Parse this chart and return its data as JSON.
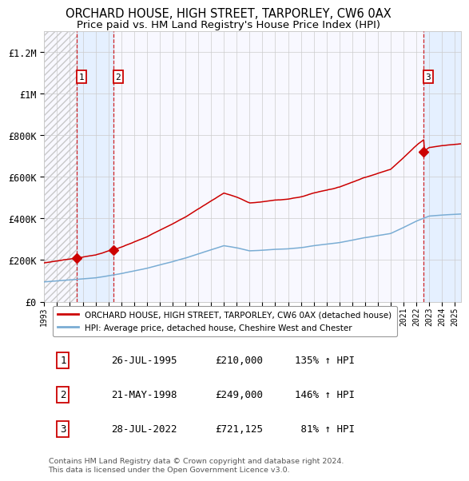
{
  "title": "ORCHARD HOUSE, HIGH STREET, TARPORLEY, CW6 0AX",
  "subtitle": "Price paid vs. HM Land Registry's House Price Index (HPI)",
  "title_fontsize": 10.5,
  "subtitle_fontsize": 9.5,
  "ylim": [
    0,
    1300000
  ],
  "yticks": [
    0,
    200000,
    400000,
    600000,
    800000,
    1000000,
    1200000
  ],
  "ytick_labels": [
    "£0",
    "£200K",
    "£400K",
    "£600K",
    "£800K",
    "£1M",
    "£1.2M"
  ],
  "xmin_year": 1993.0,
  "xmax_year": 2025.5,
  "xtick_years": [
    1993,
    1994,
    1995,
    1996,
    1997,
    1998,
    1999,
    2000,
    2001,
    2002,
    2003,
    2004,
    2005,
    2006,
    2007,
    2008,
    2009,
    2010,
    2011,
    2012,
    2013,
    2014,
    2015,
    2016,
    2017,
    2018,
    2019,
    2020,
    2021,
    2022,
    2023,
    2024,
    2025
  ],
  "sale_dates": [
    1995.56,
    1998.39,
    2022.57
  ],
  "sale_prices": [
    210000,
    249000,
    721125
  ],
  "sale_labels": [
    "1",
    "2",
    "3"
  ],
  "red_line_color": "#cc0000",
  "blue_line_color": "#7aadd4",
  "sale_marker_color": "#cc0000",
  "shade_color": "#ddeeff",
  "dashed_line_color": "#cc0000",
  "grid_color": "#cccccc",
  "background_color": "#ffffff",
  "plot_bg_color": "#f8f8ff",
  "legend_entry1": "ORCHARD HOUSE, HIGH STREET, TARPORLEY, CW6 0AX (detached house)",
  "legend_entry2": "HPI: Average price, detached house, Cheshire West and Chester",
  "table_data": [
    [
      "1",
      "26-JUL-1995",
      "£210,000",
      "135% ↑ HPI"
    ],
    [
      "2",
      "21-MAY-1998",
      "£249,000",
      "146% ↑ HPI"
    ],
    [
      "3",
      "28-JUL-2022",
      "£721,125",
      " 81% ↑ HPI"
    ]
  ],
  "footnote": "Contains HM Land Registry data © Crown copyright and database right 2024.\nThis data is licensed under the Open Government Licence v3.0."
}
